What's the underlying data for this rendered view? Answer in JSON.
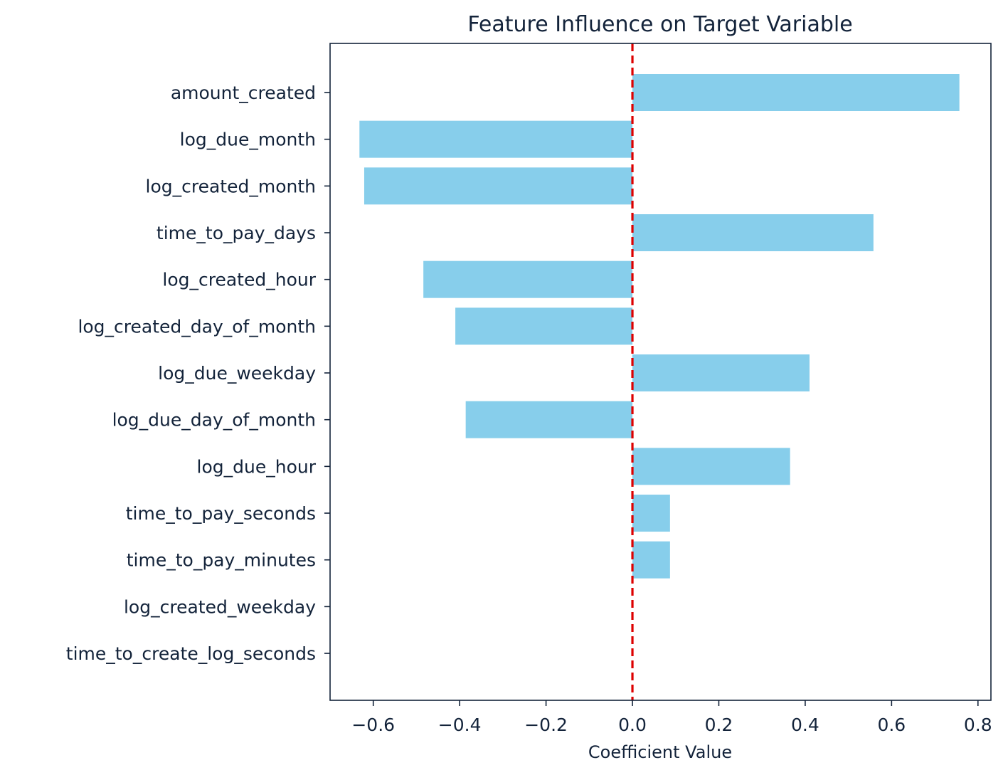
{
  "chart_data": {
    "type": "bar",
    "orientation": "horizontal",
    "title": "Feature Influence on Target Variable",
    "xlabel": "Coefficient Value",
    "ylabel": "",
    "xlim": [
      -0.7,
      0.83
    ],
    "xticks": [
      -0.6,
      -0.4,
      -0.2,
      0.0,
      0.2,
      0.4,
      0.6,
      0.8
    ],
    "xtick_labels": [
      "−0.6",
      "−0.4",
      "−0.2",
      "0.0",
      "0.2",
      "0.4",
      "0.6",
      "0.8"
    ],
    "grid": false,
    "legend": "none",
    "categories": [
      "amount_created",
      "log_due_month",
      "log_created_month",
      "time_to_pay_days",
      "log_created_hour",
      "log_created_day_of_month",
      "log_due_weekday",
      "log_due_day_of_month",
      "log_due_hour",
      "time_to_pay_seconds",
      "time_to_pay_minutes",
      "log_created_weekday",
      "time_to_create_log_seconds"
    ],
    "values": [
      0.757,
      -0.632,
      -0.621,
      0.558,
      -0.484,
      -0.41,
      0.41,
      -0.386,
      0.365,
      0.087,
      0.087,
      0.0,
      0.0
    ],
    "reference_line": {
      "x": 0.0,
      "color": "#dd0000",
      "style": "dashed"
    },
    "colors": {
      "bar": "#87ceeb",
      "axis": "#13233a",
      "text": "#13233a"
    }
  }
}
